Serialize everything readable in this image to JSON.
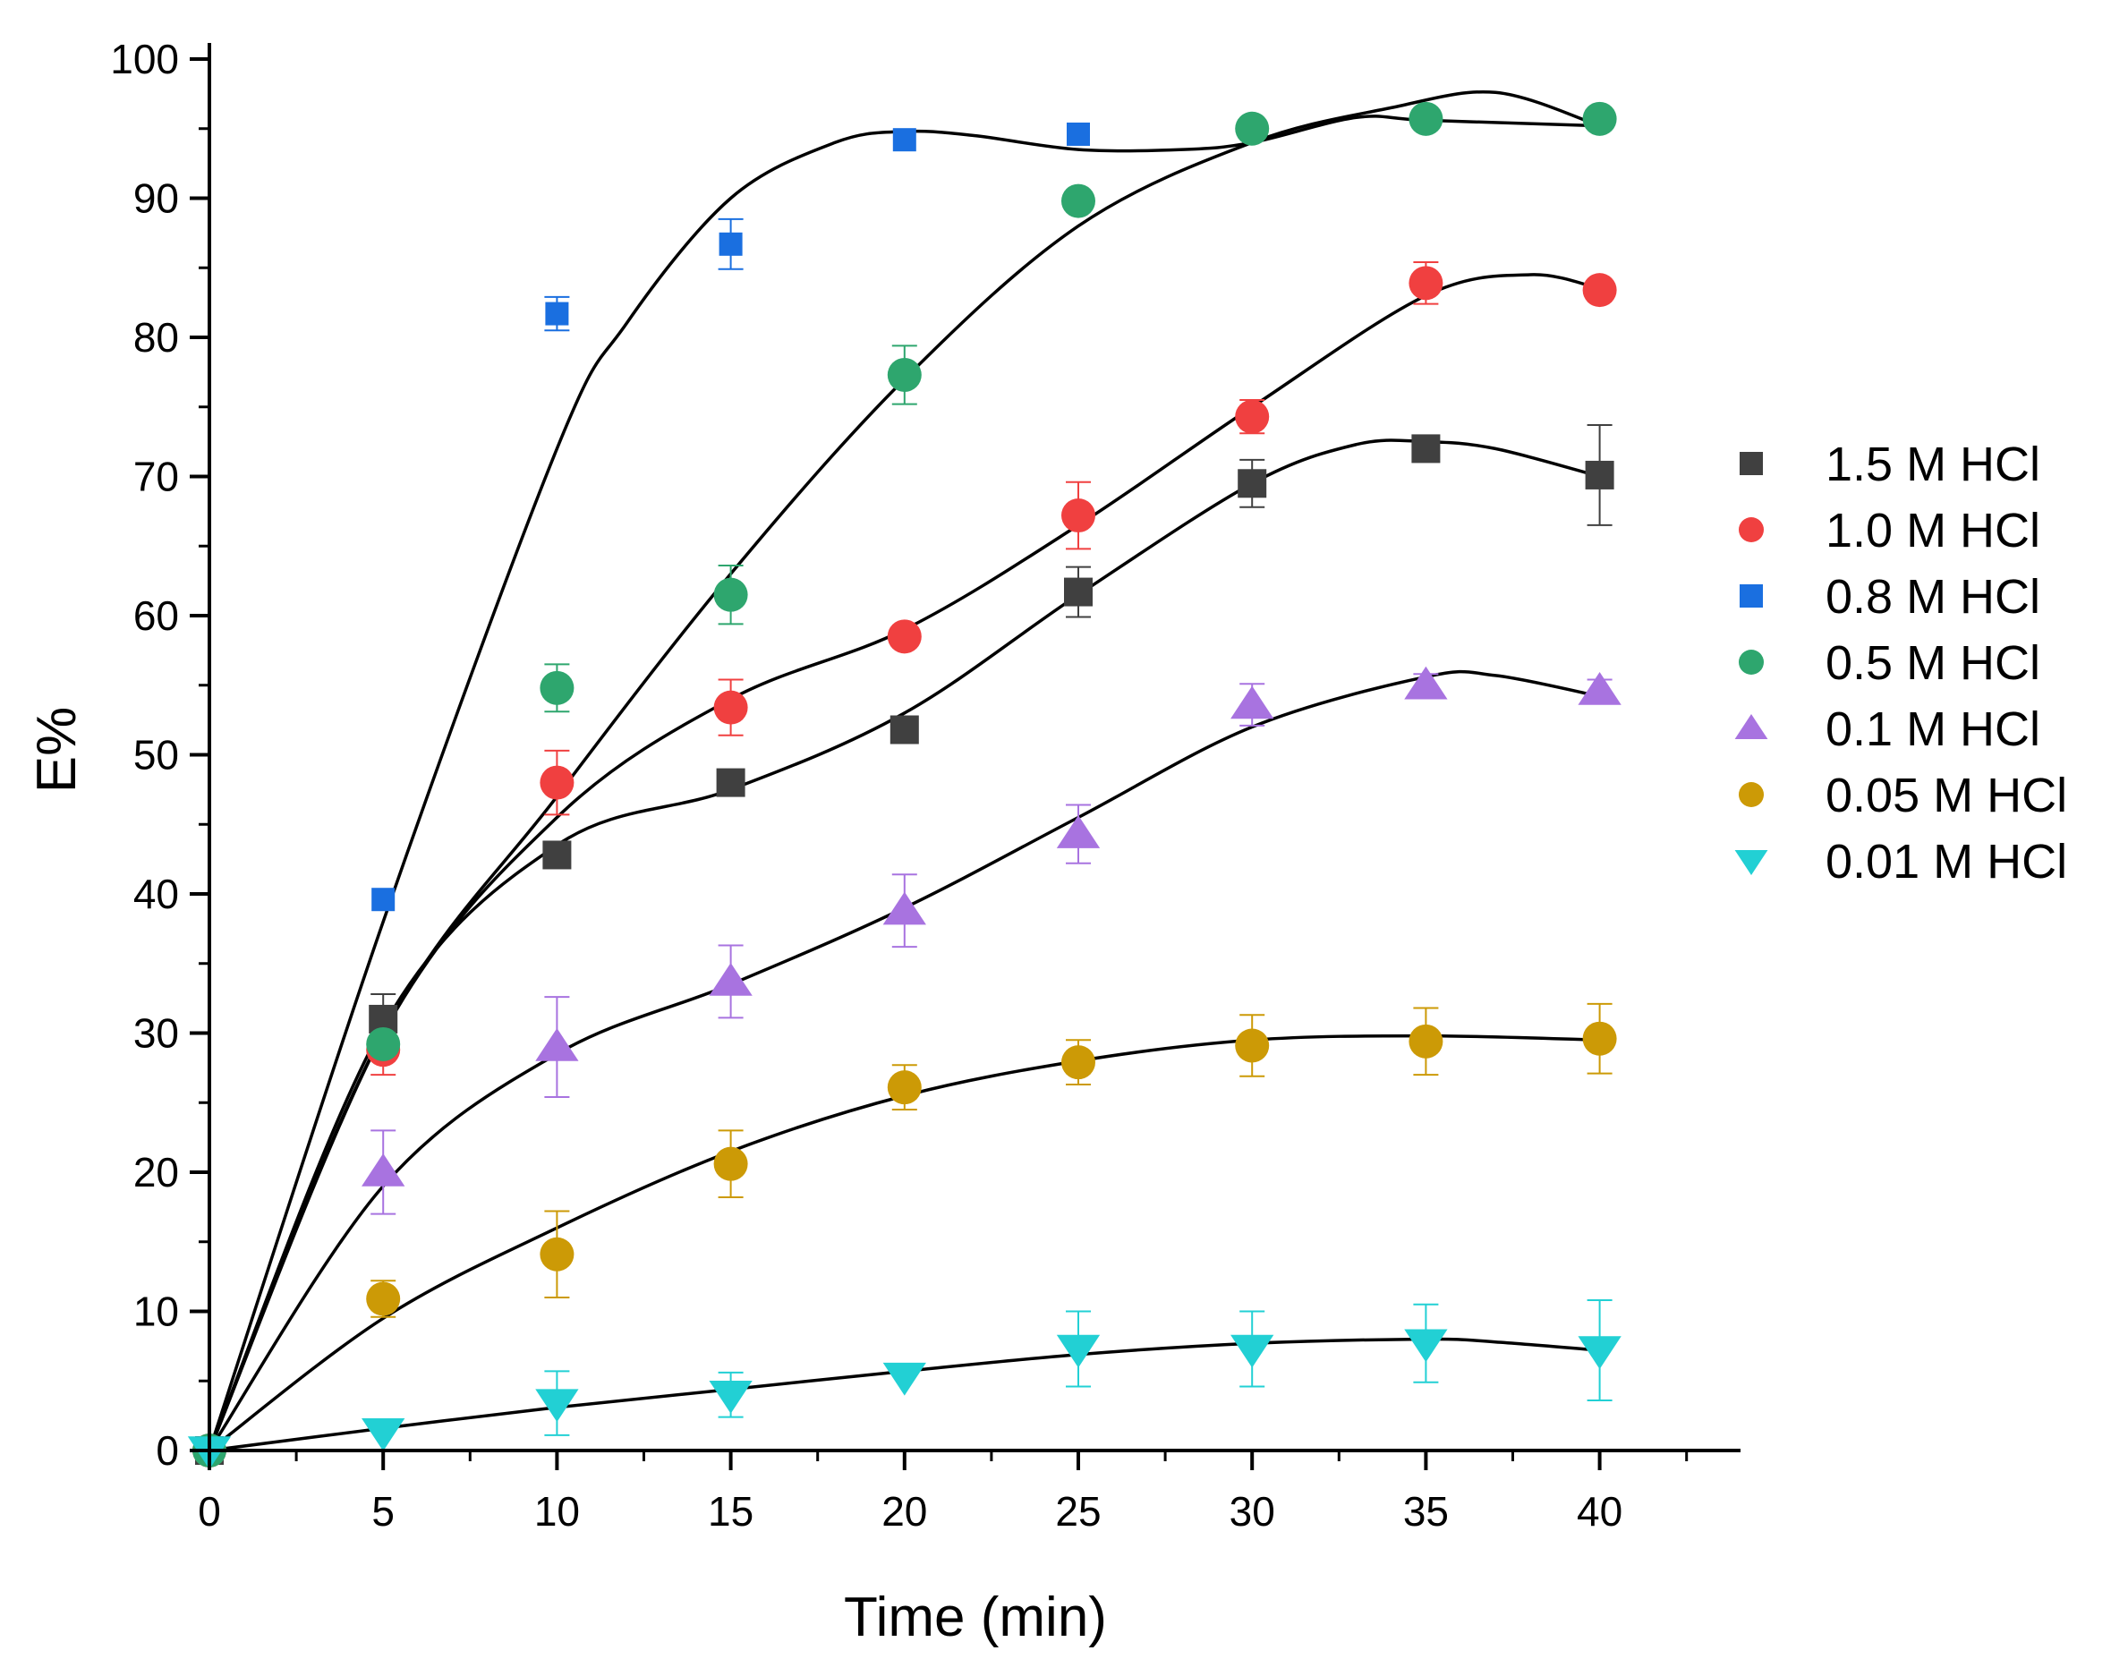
{
  "chart_data": {
    "type": "scatter",
    "xlabel": "Time (min)",
    "ylabel": "E%",
    "xlim": [
      0,
      44
    ],
    "ylim": [
      0,
      100
    ],
    "x_ticks": [
      "0",
      "5",
      "10",
      "15",
      "20",
      "25",
      "30",
      "35",
      "40"
    ],
    "y_ticks": [
      "0",
      "10",
      "20",
      "30",
      "40",
      "50",
      "60",
      "70",
      "80",
      "90",
      "100"
    ],
    "x_tick_values": [
      0,
      5,
      10,
      15,
      20,
      25,
      30,
      35,
      40
    ],
    "y_tick_values": [
      0,
      10,
      20,
      30,
      40,
      50,
      60,
      70,
      80,
      90,
      100
    ],
    "legend_position": "right",
    "series": [
      {
        "name": "1.5 M HCl",
        "color": "#404040",
        "marker": "square",
        "marker_size": "large",
        "x": [
          0,
          5,
          10,
          15,
          20,
          25,
          30,
          35,
          40
        ],
        "y": [
          0,
          31.0,
          42.8,
          48.0,
          51.8,
          61.7,
          69.5,
          72.0,
          70.1
        ],
        "err": [
          0,
          1.8,
          0,
          0,
          0,
          1.8,
          1.7,
          0,
          3.6
        ],
        "fit": [
          [
            0,
            0
          ],
          [
            5,
            30.5
          ],
          [
            10,
            43.5
          ],
          [
            15,
            47.5
          ],
          [
            20,
            53.0
          ],
          [
            25,
            61.5
          ],
          [
            30,
            69.5
          ],
          [
            33,
            72.3
          ],
          [
            35,
            72.5
          ],
          [
            37,
            72.0
          ],
          [
            40,
            70.0
          ]
        ]
      },
      {
        "name": "1.0 M HCl",
        "color": "#f04040",
        "marker": "circle",
        "marker_size": "large",
        "x": [
          0,
          5,
          10,
          15,
          20,
          25,
          30,
          35,
          40
        ],
        "y": [
          0,
          28.8,
          48.0,
          53.4,
          58.5,
          67.2,
          74.3,
          83.9,
          83.4
        ],
        "err": [
          0,
          1.8,
          2.3,
          2.0,
          0,
          2.4,
          1.2,
          1.5,
          0
        ],
        "fit": [
          [
            0,
            0
          ],
          [
            5,
            30
          ],
          [
            10,
            45.5
          ],
          [
            15,
            54
          ],
          [
            20,
            59
          ],
          [
            25,
            66.5
          ],
          [
            30,
            75
          ],
          [
            35,
            83
          ],
          [
            38,
            84.5
          ],
          [
            40,
            83.5
          ]
        ]
      },
      {
        "name": "0.8 M HCl",
        "color": "#1a6fe0",
        "marker": "square",
        "marker_size": "small",
        "x": [
          5,
          10,
          15,
          20,
          25
        ],
        "y": [
          39.6,
          81.7,
          86.7,
          94.2,
          94.6
        ],
        "err": [
          0,
          1.2,
          1.8,
          0,
          0
        ],
        "fit": [
          [
            0,
            0
          ],
          [
            5,
            38
          ],
          [
            10,
            72
          ],
          [
            12,
            81
          ],
          [
            15,
            90
          ],
          [
            18,
            94
          ],
          [
            20,
            94.8
          ],
          [
            22,
            94.5
          ],
          [
            25,
            93.5
          ],
          [
            28,
            93.5
          ],
          [
            30,
            94
          ],
          [
            33,
            95.8
          ],
          [
            35,
            95.6
          ],
          [
            40,
            95.2
          ]
        ]
      },
      {
        "name": "0.5 M HCl",
        "color": "#2ea66e",
        "marker": "circle",
        "marker_size": "large",
        "x": [
          0,
          5,
          10,
          15,
          20,
          25,
          30,
          35,
          40
        ],
        "y": [
          0,
          29.2,
          54.8,
          61.5,
          77.3,
          89.8,
          95.0,
          95.7,
          95.7
        ],
        "err": [
          0,
          0,
          1.7,
          2.1,
          2.1,
          0,
          0,
          0,
          0
        ],
        "fit": [
          [
            0,
            0
          ],
          [
            5,
            30
          ],
          [
            10,
            47
          ],
          [
            15,
            63
          ],
          [
            20,
            77
          ],
          [
            25,
            88
          ],
          [
            30,
            94
          ],
          [
            34,
            96.5
          ],
          [
            37,
            97.6
          ],
          [
            40,
            95.2
          ]
        ]
      },
      {
        "name": "0.1 M HCl",
        "color": "#a873e0",
        "marker": "triangle-up",
        "marker_size": "large",
        "x": [
          5,
          10,
          15,
          20,
          25,
          30,
          35,
          40
        ],
        "y": [
          20.0,
          29.0,
          33.7,
          38.8,
          44.3,
          53.6,
          55.0,
          54.6
        ],
        "err": [
          3.0,
          3.6,
          2.6,
          2.6,
          2.1,
          1.5,
          0.8,
          0.8
        ],
        "fit": [
          [
            0,
            0
          ],
          [
            5,
            19
          ],
          [
            10,
            28.5
          ],
          [
            15,
            33.5
          ],
          [
            20,
            39
          ],
          [
            25,
            45.5
          ],
          [
            30,
            52
          ],
          [
            35,
            55.6
          ],
          [
            37,
            55.7
          ],
          [
            40,
            54.2
          ]
        ]
      },
      {
        "name": "0.05 M HCl",
        "color": "#cc9a06",
        "marker": "circle",
        "marker_size": "large",
        "x": [
          5,
          10,
          15,
          20,
          25,
          30,
          35,
          40
        ],
        "y": [
          10.9,
          14.1,
          20.6,
          26.1,
          27.9,
          29.1,
          29.4,
          29.6
        ],
        "err": [
          1.3,
          3.1,
          2.4,
          1.6,
          1.6,
          2.2,
          2.4,
          2.5
        ],
        "fit": [
          [
            0,
            0
          ],
          [
            5,
            9.5
          ],
          [
            10,
            16
          ],
          [
            15,
            21.5
          ],
          [
            20,
            25.5
          ],
          [
            25,
            28
          ],
          [
            30,
            29.5
          ],
          [
            35,
            29.8
          ],
          [
            40,
            29.5
          ]
        ]
      },
      {
        "name": "0.01 M HCl",
        "color": "#22d0d4",
        "marker": "triangle-down",
        "marker_size": "large",
        "x": [
          0,
          5,
          10,
          15,
          20,
          25,
          30,
          35,
          40
        ],
        "y": [
          0,
          1.3,
          3.4,
          4.0,
          5.3,
          7.3,
          7.3,
          7.7,
          7.2
        ],
        "err": [
          0,
          0,
          2.3,
          1.6,
          0,
          2.7,
          2.7,
          2.8,
          3.6
        ],
        "fit": [
          [
            0,
            0
          ],
          [
            5,
            1.6
          ],
          [
            10,
            3.1
          ],
          [
            15,
            4.4
          ],
          [
            20,
            5.7
          ],
          [
            25,
            6.9
          ],
          [
            30,
            7.7
          ],
          [
            35,
            8.0
          ],
          [
            37,
            7.8
          ],
          [
            40,
            7.2
          ]
        ]
      }
    ]
  }
}
